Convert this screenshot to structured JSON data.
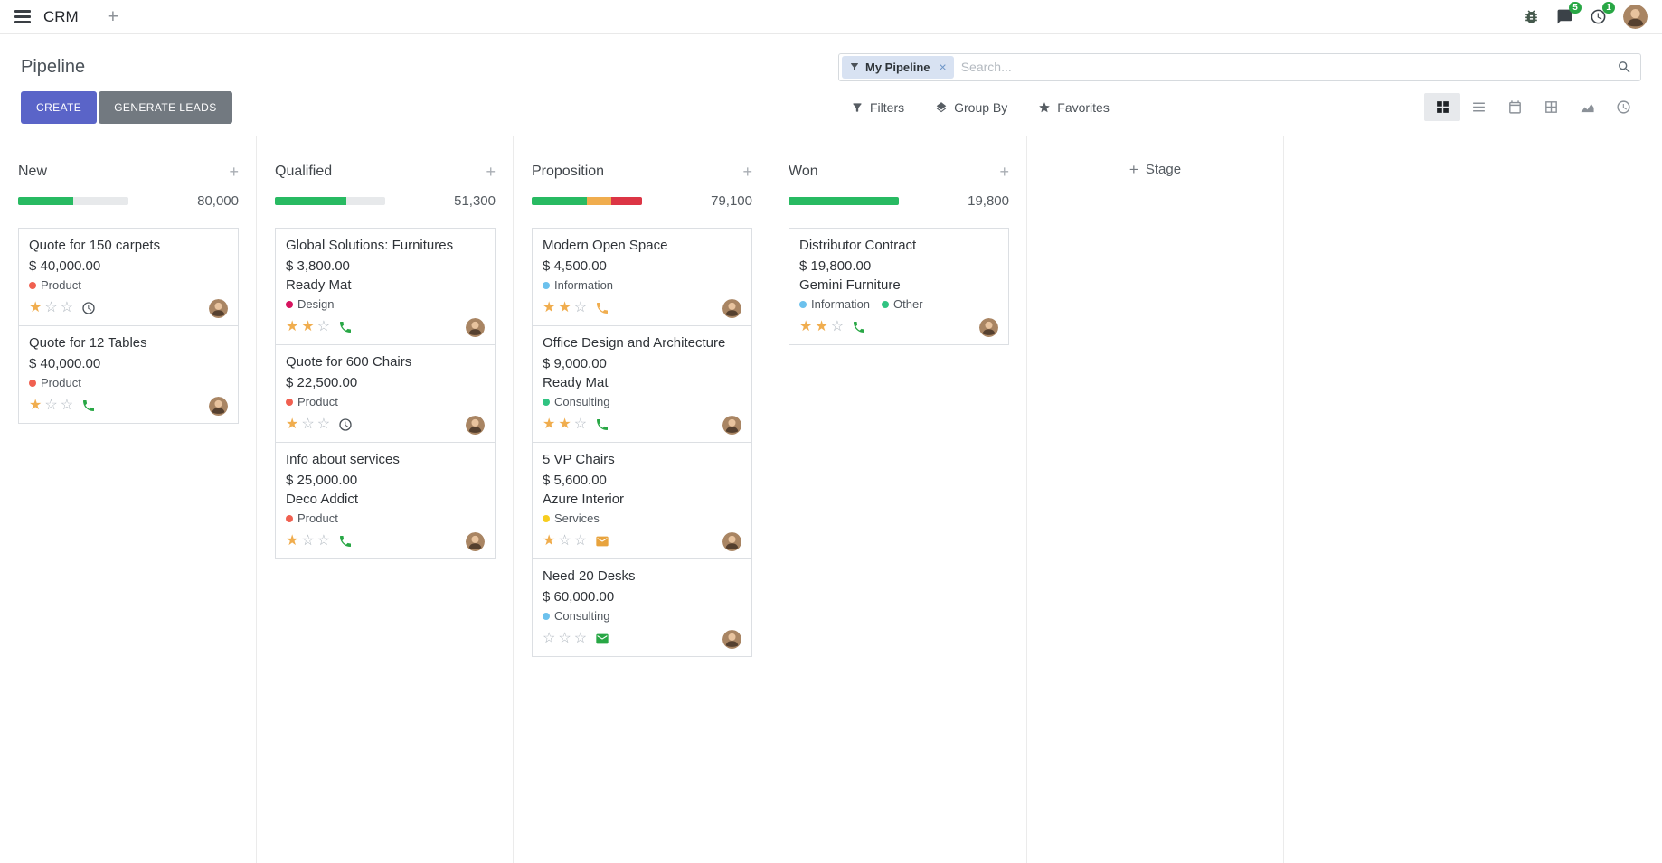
{
  "colors": {
    "primary_button": "#5a64c8",
    "secondary_button": "#727980",
    "progress_success": "#28ba62",
    "progress_warning": "#f0ad4e",
    "progress_danger": "#dc3545",
    "star_filled": "#f0ad4e",
    "badge": "#28a745"
  },
  "glyphs": {
    "plus": "+",
    "star_filled": "★",
    "star_empty": "☆"
  },
  "navbar": {
    "app_name": "CRM",
    "message_count": "5",
    "activity_count": "1"
  },
  "control_panel": {
    "title": "Pipeline",
    "buttons": {
      "create": "CREATE",
      "generate_leads": "GENERATE LEADS"
    },
    "search": {
      "facet_label": "My Pipeline",
      "placeholder": "Search...",
      "clear": "×"
    },
    "menus": {
      "filters": "Filters",
      "group_by": "Group By",
      "favorites": "Favorites"
    }
  },
  "view_switcher": {
    "active": "kanban",
    "views": [
      "kanban",
      "list",
      "calendar",
      "pivot",
      "graph",
      "activity"
    ]
  },
  "board": {
    "add_column_label": "Stage",
    "columns": [
      {
        "name": "New",
        "total": "80,000",
        "progress": [
          {
            "color": "#28ba62",
            "pct": 50
          }
        ],
        "cards": [
          {
            "title": "Quote for 150 carpets",
            "amount": "$ 40,000.00",
            "tags": [
              {
                "label": "Product",
                "color": "#f06050"
              }
            ],
            "stars": 1,
            "activity": {
              "icon": "clock",
              "color": "#495057"
            }
          },
          {
            "title": "Quote for 12 Tables",
            "amount": "$ 40,000.00",
            "tags": [
              {
                "label": "Product",
                "color": "#f06050"
              }
            ],
            "stars": 1,
            "activity": {
              "icon": "phone",
              "color": "#28a745"
            }
          }
        ]
      },
      {
        "name": "Qualified",
        "total": "51,300",
        "progress": [
          {
            "color": "#28ba62",
            "pct": 65
          }
        ],
        "cards": [
          {
            "title": "Global Solutions: Furnitures",
            "amount": "$ 3,800.00",
            "partner": "Ready Mat",
            "tags": [
              {
                "label": "Design",
                "color": "#d6145f"
              }
            ],
            "stars": 2,
            "activity": {
              "icon": "phone",
              "color": "#28a745"
            }
          },
          {
            "title": "Quote for 600 Chairs",
            "amount": "$ 22,500.00",
            "tags": [
              {
                "label": "Product",
                "color": "#f06050"
              }
            ],
            "stars": 1,
            "activity": {
              "icon": "clock",
              "color": "#495057"
            }
          },
          {
            "title": "Info about services",
            "amount": "$ 25,000.00",
            "partner": "Deco Addict",
            "tags": [
              {
                "label": "Product",
                "color": "#f06050"
              }
            ],
            "stars": 1,
            "activity": {
              "icon": "phone",
              "color": "#28a745"
            }
          }
        ]
      },
      {
        "name": "Proposition",
        "total": "79,100",
        "progress": [
          {
            "color": "#28ba62",
            "pct": 50
          },
          {
            "color": "#f0ad4e",
            "pct": 22
          },
          {
            "color": "#dc3545",
            "pct": 28
          }
        ],
        "cards": [
          {
            "title": "Modern Open Space",
            "amount": "$ 4,500.00",
            "tags": [
              {
                "label": "Information",
                "color": "#6cc1ed"
              }
            ],
            "stars": 2,
            "activity": {
              "icon": "phone",
              "color": "#f0ad4e"
            }
          },
          {
            "title": "Office Design and Architecture",
            "amount": "$ 9,000.00",
            "partner": "Ready Mat",
            "tags": [
              {
                "label": "Consulting",
                "color": "#30c381"
              }
            ],
            "stars": 2,
            "activity": {
              "icon": "phone",
              "color": "#28a745"
            }
          },
          {
            "title": "5 VP Chairs",
            "amount": "$ 5,600.00",
            "partner": "Azure Interior",
            "tags": [
              {
                "label": "Services",
                "color": "#f7cd1f"
              }
            ],
            "stars": 1,
            "activity": {
              "icon": "envelope",
              "color": "#e8a33d"
            }
          },
          {
            "title": "Need 20 Desks",
            "amount": "$ 60,000.00",
            "tags": [
              {
                "label": "Consulting",
                "color": "#6cc1ed"
              }
            ],
            "stars": 0,
            "activity": {
              "icon": "envelope",
              "color": "#28a745"
            }
          }
        ]
      },
      {
        "name": "Won",
        "total": "19,800",
        "progress": [
          {
            "color": "#28ba62",
            "pct": 100
          }
        ],
        "cards": [
          {
            "title": "Distributor Contract",
            "amount": "$ 19,800.00",
            "partner": "Gemini Furniture",
            "tags": [
              {
                "label": "Information",
                "color": "#6cc1ed"
              },
              {
                "label": "Other",
                "color": "#30c381"
              }
            ],
            "stars": 2,
            "activity": {
              "icon": "phone",
              "color": "#28a745"
            }
          }
        ]
      }
    ]
  }
}
